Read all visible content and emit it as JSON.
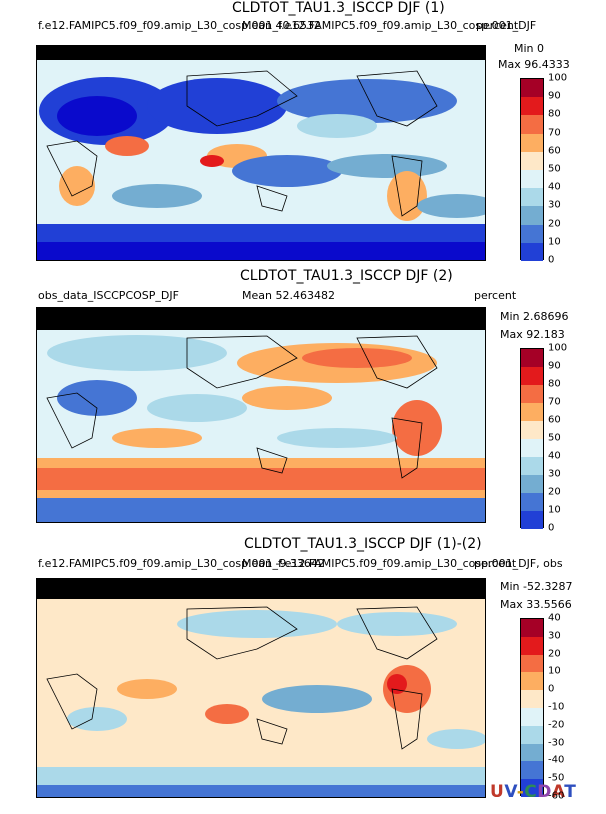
{
  "panels": [
    {
      "title": "CLDTOT_TAU1.3_ISCCP DJF (1)",
      "left_label": "f.e12.FAMIPC5.f09_f09.amip_L30_cosp.001_f.e12.FAMIPC5.f09_f09.amip_L30_cosp.001_DJF",
      "mean_label": "Mean 40.6532",
      "units": "percent",
      "min_label": "Min 0",
      "max_label": "Max 96.4333",
      "levels": [
        "100",
        "90",
        "80",
        "70",
        "60",
        "50",
        "40",
        "30",
        "20",
        "10",
        "0"
      ],
      "colors": [
        "#a50026",
        "#e31a1c",
        "#f46d43",
        "#fdae61",
        "#fee8c8",
        "#e0f3f8",
        "#abd9e9",
        "#74add1",
        "#4575d4",
        "#2140d6",
        "#0a0acc"
      ]
    },
    {
      "title": "CLDTOT_TAU1.3_ISCCP DJF (2)",
      "left_label": "obs_data_ISCCPCOSP_DJF",
      "mean_label": "Mean 52.463482",
      "units": "percent",
      "min_label": "Min 2.68696",
      "max_label": "Max 92.183",
      "levels": [
        "100",
        "90",
        "80",
        "70",
        "60",
        "50",
        "40",
        "30",
        "20",
        "10",
        "0"
      ],
      "colors": [
        "#a50026",
        "#e31a1c",
        "#f46d43",
        "#fdae61",
        "#fee8c8",
        "#e0f3f8",
        "#abd9e9",
        "#74add1",
        "#4575d4",
        "#2140d6",
        "#0a0acc"
      ]
    },
    {
      "title": "CLDTOT_TAU1.3_ISCCP DJF (1)-(2)",
      "left_label": "f.e12.FAMIPC5.f09_f09.amip_L30_cosp.001_f.e12.FAMIPC5.f09_f09.amip_L30_cosp.001_DJF, obs",
      "mean_label": "Mean -9.33642",
      "units": "percent",
      "min_label": "Min -52.3287",
      "max_label": "Max 33.5566",
      "levels": [
        "40",
        "30",
        "20",
        "10",
        "0",
        "-10",
        "-20",
        "-30",
        "-40",
        "-50",
        "-60"
      ],
      "colors": [
        "#a50026",
        "#e31a1c",
        "#f46d43",
        "#fdae61",
        "#fee8c8",
        "#e0f3f8",
        "#abd9e9",
        "#74add1",
        "#4575d4",
        "#2140d6",
        "#0a0acc"
      ]
    }
  ],
  "logo": {
    "text": "UV-CDAT",
    "colors": [
      "#c0392b",
      "#2e4fbf",
      "#d4a017",
      "#2e8b57",
      "#8e44ad"
    ]
  }
}
